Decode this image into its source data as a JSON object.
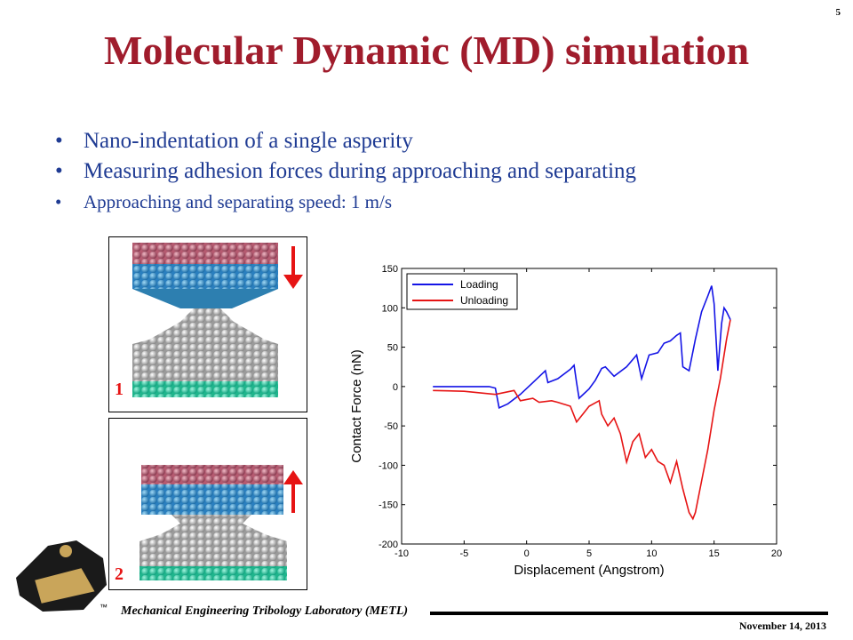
{
  "slide_number": "5",
  "title": "Molecular Dynamic (MD) simulation",
  "bullets": [
    "Nano-indentation of a single asperity",
    "Measuring adhesion forces during approaching and separating",
    "Approaching and separating speed: 1 m/s"
  ],
  "panels": [
    {
      "label": "1",
      "arrow": "down"
    },
    {
      "label": "2",
      "arrow": "up"
    }
  ],
  "colors": {
    "title": "#a01c2c",
    "bullets": "#1f3b93",
    "loading": "#1414e6",
    "unloading": "#e61414",
    "arrow": "#e61414"
  },
  "footer": {
    "lab": "Mechanical Engineering Tribology Laboratory (METL)",
    "date": "November 14, 2013",
    "logo_icon": "purdue-train-logo-icon"
  },
  "chart_data": {
    "type": "line",
    "title": "",
    "xlabel": "Displacement (Angstrom)",
    "ylabel": "Contact Force (nN)",
    "xlim": [
      -10,
      20
    ],
    "ylim": [
      -200,
      150
    ],
    "xticks": [
      -10,
      -5,
      0,
      5,
      10,
      15,
      20
    ],
    "yticks": [
      150,
      100,
      50,
      0,
      -50,
      -100,
      -150,
      -200
    ],
    "legend_position": "top-left",
    "series": [
      {
        "name": "Loading",
        "color": "#1414e6",
        "x": [
          -7.5,
          -3.0,
          -2.5,
          -2.2,
          -1.5,
          -0.5,
          0.5,
          1.5,
          1.7,
          2.5,
          3.5,
          3.8,
          4.0,
          4.2,
          5.0,
          5.5,
          6.0,
          6.3,
          7.0,
          8.0,
          8.8,
          9.2,
          9.8,
          10.5,
          11.0,
          11.5,
          12.0,
          12.3,
          12.5,
          13.0,
          13.5,
          14.0,
          14.5,
          14.8,
          15.0,
          15.3,
          15.6,
          15.8,
          16.0,
          16.3
        ],
        "y": [
          0,
          0,
          -2,
          -27,
          -22,
          -10,
          5,
          20,
          5,
          10,
          22,
          27,
          5,
          -15,
          -3,
          8,
          23,
          25,
          13,
          25,
          40,
          10,
          40,
          43,
          55,
          58,
          65,
          68,
          25,
          20,
          60,
          95,
          115,
          128,
          105,
          20,
          80,
          100,
          95,
          85
        ]
      },
      {
        "name": "Unloading",
        "color": "#e61414",
        "x": [
          -7.5,
          -5.0,
          -2.5,
          -1.0,
          -0.5,
          0.5,
          1.0,
          2.0,
          2.5,
          3.5,
          4.0,
          4.5,
          5.0,
          5.8,
          6.0,
          6.5,
          7.0,
          7.5,
          8.0,
          8.5,
          9.0,
          9.5,
          10.0,
          10.5,
          11.0,
          11.5,
          12.0,
          12.5,
          13.0,
          13.3,
          13.5,
          14.0,
          14.5,
          15.0,
          15.5,
          16.0,
          16.3
        ],
        "y": [
          -5,
          -6,
          -10,
          -5,
          -18,
          -15,
          -20,
          -18,
          -20,
          -25,
          -45,
          -35,
          -25,
          -18,
          -35,
          -50,
          -40,
          -60,
          -96,
          -70,
          -60,
          -90,
          -80,
          -95,
          -100,
          -122,
          -95,
          -130,
          -160,
          -168,
          -160,
          -120,
          -80,
          -30,
          10,
          60,
          85
        ]
      }
    ]
  }
}
